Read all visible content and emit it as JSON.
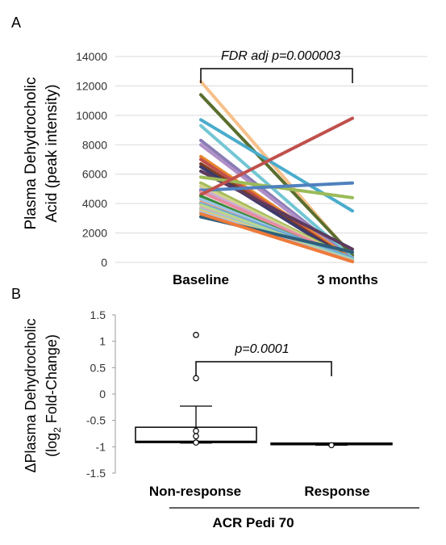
{
  "chart_data": [
    {
      "panel": "A",
      "type": "line",
      "ylabel_line1": "Plasma Dehydrocholic",
      "ylabel_line2": "Acid (peak intensity)",
      "ylim": [
        0,
        14000
      ],
      "yticks": [
        "0",
        "2000",
        "4000",
        "6000",
        "8000",
        "10000",
        "12000",
        "14000"
      ],
      "categories": [
        "Baseline",
        "3 months"
      ],
      "annotation": "FDR adj p=0.000003",
      "grid": true,
      "series": [
        {
          "color": "#f7c08a",
          "values": [
            12300,
            400
          ]
        },
        {
          "color": "#5a6e2e",
          "values": [
            11400,
            500
          ]
        },
        {
          "color": "#4aaccc",
          "values": [
            9700,
            3500
          ]
        },
        {
          "color": "#73c6d4",
          "values": [
            9300,
            300
          ]
        },
        {
          "color": "#8a7cb5",
          "values": [
            8300,
            200
          ]
        },
        {
          "color": "#b08fc7",
          "values": [
            8000,
            150
          ]
        },
        {
          "color": "#e8862c",
          "values": [
            7200,
            200
          ]
        },
        {
          "color": "#c0504d",
          "values": [
            7000,
            100
          ]
        },
        {
          "color": "#7f3f1f",
          "values": [
            6700,
            120
          ]
        },
        {
          "color": "#3d3a6b",
          "values": [
            6500,
            80
          ]
        },
        {
          "color": "#5b3a5e",
          "values": [
            6200,
            900
          ]
        },
        {
          "color": "#9bbb59",
          "values": [
            5800,
            4400
          ]
        },
        {
          "color": "#a6bc5e",
          "values": [
            5400,
            200
          ]
        },
        {
          "color": "#d4d48a",
          "values": [
            5200,
            150
          ]
        },
        {
          "color": "#c9b0d6",
          "values": [
            5000,
            100
          ]
        },
        {
          "color": "#4f81bd",
          "values": [
            4900,
            5400
          ]
        },
        {
          "color": "#e88ba0",
          "values": [
            4800,
            200
          ]
        },
        {
          "color": "#c0504d",
          "values": [
            4600,
            9800
          ]
        },
        {
          "color": "#3a8a3a",
          "values": [
            4500,
            80
          ]
        },
        {
          "color": "#9ac6ea",
          "values": [
            4300,
            150
          ]
        },
        {
          "color": "#f0a07a",
          "values": [
            4100,
            100
          ]
        },
        {
          "color": "#6fa6d6",
          "values": [
            4000,
            300
          ]
        },
        {
          "color": "#b9d98a",
          "values": [
            3900,
            100
          ]
        },
        {
          "color": "#e0a4c4",
          "values": [
            3700,
            60
          ]
        },
        {
          "color": "#8fd4c4",
          "values": [
            3600,
            200
          ]
        },
        {
          "color": "#f4c36a",
          "values": [
            3500,
            100
          ]
        },
        {
          "color": "#a5c4e8",
          "values": [
            3400,
            80
          ]
        },
        {
          "color": "#2e5f7a",
          "values": [
            3100,
            700
          ]
        },
        {
          "color": "#ee7a3a",
          "values": [
            3300,
            50
          ]
        }
      ]
    },
    {
      "panel": "B",
      "type": "box",
      "ylabel_line1": "ΔPlasma Dehydrocholic",
      "ylabel_line2_pre": "(log",
      "ylabel_line2_sub": "2",
      "ylabel_line2_post": " Fold-Change)",
      "ylim": [
        -1.5,
        1.5
      ],
      "yticks": [
        "-1.5",
        "-1",
        "-0.5",
        "0",
        "0.5",
        "1",
        "1.5"
      ],
      "categories": [
        "Non-response",
        "Response"
      ],
      "xlabel": "ACR Pedi 70",
      "annotation": "p=0.0001",
      "grid": false,
      "boxes": [
        {
          "name": "Non-response",
          "whisker_low": -0.93,
          "q1": -0.92,
          "median": -0.9,
          "q3": -0.63,
          "whisker_high": -0.23,
          "outliers": [
            1.12,
            0.3,
            -0.7,
            -0.8,
            -0.92
          ]
        },
        {
          "name": "Response",
          "whisker_low": -0.97,
          "q1": -0.95,
          "median": -0.94,
          "q3": -0.93,
          "whisker_high": -0.93,
          "outliers": [
            -0.97
          ]
        }
      ]
    }
  ],
  "panel_labels": {
    "a": "A",
    "b": "B"
  }
}
